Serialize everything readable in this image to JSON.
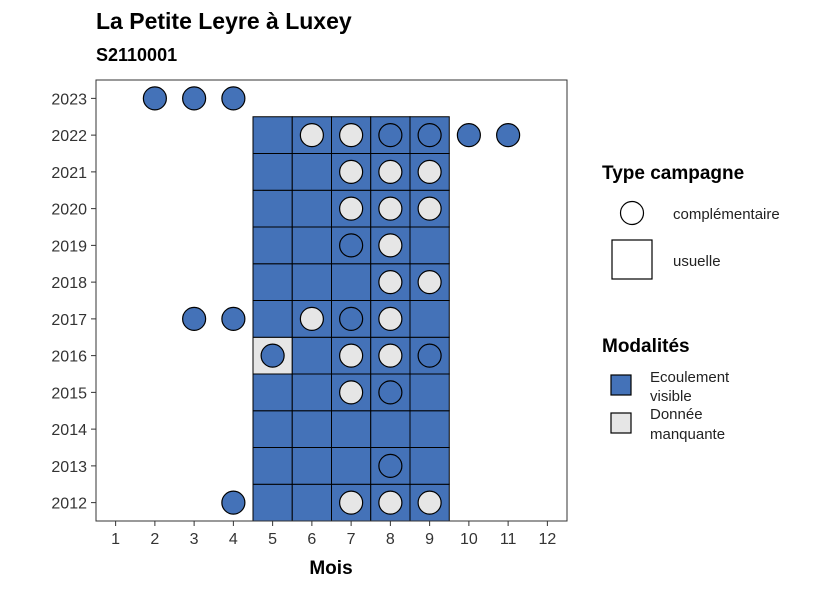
{
  "chart_data": {
    "type": "heatmap",
    "title": "La Petite Leyre à Luxey",
    "subtitle": "S2110001",
    "xlabel": "Mois",
    "ylabel": "",
    "x_ticks": [
      1,
      2,
      3,
      4,
      5,
      6,
      7,
      8,
      9,
      10,
      11,
      12
    ],
    "y_ticks": [
      2012,
      2013,
      2014,
      2015,
      2016,
      2017,
      2018,
      2019,
      2020,
      2021,
      2022,
      2023
    ],
    "xlim": [
      0.5,
      12.5
    ],
    "ylim": [
      2011.5,
      2023.5
    ],
    "colors": {
      "ecoulement_visible": "#4472B8",
      "donnee_manquante": "#E6E6E6"
    },
    "tiles_usuelle": [
      {
        "x": 5,
        "y": 2012,
        "m": "ecoulement_visible"
      },
      {
        "x": 6,
        "y": 2012,
        "m": "ecoulement_visible"
      },
      {
        "x": 7,
        "y": 2012,
        "m": "ecoulement_visible"
      },
      {
        "x": 8,
        "y": 2012,
        "m": "ecoulement_visible"
      },
      {
        "x": 9,
        "y": 2012,
        "m": "ecoulement_visible"
      },
      {
        "x": 5,
        "y": 2013,
        "m": "ecoulement_visible"
      },
      {
        "x": 6,
        "y": 2013,
        "m": "ecoulement_visible"
      },
      {
        "x": 7,
        "y": 2013,
        "m": "ecoulement_visible"
      },
      {
        "x": 8,
        "y": 2013,
        "m": "ecoulement_visible"
      },
      {
        "x": 9,
        "y": 2013,
        "m": "ecoulement_visible"
      },
      {
        "x": 5,
        "y": 2014,
        "m": "ecoulement_visible"
      },
      {
        "x": 6,
        "y": 2014,
        "m": "ecoulement_visible"
      },
      {
        "x": 7,
        "y": 2014,
        "m": "ecoulement_visible"
      },
      {
        "x": 8,
        "y": 2014,
        "m": "ecoulement_visible"
      },
      {
        "x": 9,
        "y": 2014,
        "m": "ecoulement_visible"
      },
      {
        "x": 5,
        "y": 2015,
        "m": "ecoulement_visible"
      },
      {
        "x": 6,
        "y": 2015,
        "m": "ecoulement_visible"
      },
      {
        "x": 7,
        "y": 2015,
        "m": "ecoulement_visible"
      },
      {
        "x": 8,
        "y": 2015,
        "m": "ecoulement_visible"
      },
      {
        "x": 9,
        "y": 2015,
        "m": "ecoulement_visible"
      },
      {
        "x": 5,
        "y": 2016,
        "m": "donnee_manquante"
      },
      {
        "x": 6,
        "y": 2016,
        "m": "ecoulement_visible"
      },
      {
        "x": 7,
        "y": 2016,
        "m": "ecoulement_visible"
      },
      {
        "x": 8,
        "y": 2016,
        "m": "ecoulement_visible"
      },
      {
        "x": 9,
        "y": 2016,
        "m": "ecoulement_visible"
      },
      {
        "x": 5,
        "y": 2017,
        "m": "ecoulement_visible"
      },
      {
        "x": 6,
        "y": 2017,
        "m": "ecoulement_visible"
      },
      {
        "x": 7,
        "y": 2017,
        "m": "ecoulement_visible"
      },
      {
        "x": 8,
        "y": 2017,
        "m": "ecoulement_visible"
      },
      {
        "x": 9,
        "y": 2017,
        "m": "ecoulement_visible"
      },
      {
        "x": 5,
        "y": 2018,
        "m": "ecoulement_visible"
      },
      {
        "x": 6,
        "y": 2018,
        "m": "ecoulement_visible"
      },
      {
        "x": 7,
        "y": 2018,
        "m": "ecoulement_visible"
      },
      {
        "x": 8,
        "y": 2018,
        "m": "ecoulement_visible"
      },
      {
        "x": 9,
        "y": 2018,
        "m": "ecoulement_visible"
      },
      {
        "x": 5,
        "y": 2019,
        "m": "ecoulement_visible"
      },
      {
        "x": 6,
        "y": 2019,
        "m": "ecoulement_visible"
      },
      {
        "x": 7,
        "y": 2019,
        "m": "ecoulement_visible"
      },
      {
        "x": 8,
        "y": 2019,
        "m": "ecoulement_visible"
      },
      {
        "x": 9,
        "y": 2019,
        "m": "ecoulement_visible"
      },
      {
        "x": 5,
        "y": 2020,
        "m": "ecoulement_visible"
      },
      {
        "x": 6,
        "y": 2020,
        "m": "ecoulement_visible"
      },
      {
        "x": 7,
        "y": 2020,
        "m": "ecoulement_visible"
      },
      {
        "x": 8,
        "y": 2020,
        "m": "ecoulement_visible"
      },
      {
        "x": 9,
        "y": 2020,
        "m": "ecoulement_visible"
      },
      {
        "x": 5,
        "y": 2021,
        "m": "ecoulement_visible"
      },
      {
        "x": 6,
        "y": 2021,
        "m": "ecoulement_visible"
      },
      {
        "x": 7,
        "y": 2021,
        "m": "ecoulement_visible"
      },
      {
        "x": 8,
        "y": 2021,
        "m": "ecoulement_visible"
      },
      {
        "x": 9,
        "y": 2021,
        "m": "ecoulement_visible"
      },
      {
        "x": 5,
        "y": 2022,
        "m": "ecoulement_visible"
      },
      {
        "x": 6,
        "y": 2022,
        "m": "ecoulement_visible"
      },
      {
        "x": 7,
        "y": 2022,
        "m": "ecoulement_visible"
      },
      {
        "x": 8,
        "y": 2022,
        "m": "ecoulement_visible"
      },
      {
        "x": 9,
        "y": 2022,
        "m": "ecoulement_visible"
      }
    ],
    "points_complementaire": [
      {
        "x": 2,
        "y": 2023,
        "m": "ecoulement_visible"
      },
      {
        "x": 3,
        "y": 2023,
        "m": "ecoulement_visible"
      },
      {
        "x": 4,
        "y": 2023,
        "m": "ecoulement_visible"
      },
      {
        "x": 6,
        "y": 2022,
        "m": "donnee_manquante"
      },
      {
        "x": 7,
        "y": 2022,
        "m": "donnee_manquante"
      },
      {
        "x": 8,
        "y": 2022,
        "m": "ecoulement_visible"
      },
      {
        "x": 9,
        "y": 2022,
        "m": "ecoulement_visible"
      },
      {
        "x": 10,
        "y": 2022,
        "m": "ecoulement_visible"
      },
      {
        "x": 11,
        "y": 2022,
        "m": "ecoulement_visible"
      },
      {
        "x": 7,
        "y": 2021,
        "m": "donnee_manquante"
      },
      {
        "x": 8,
        "y": 2021,
        "m": "donnee_manquante"
      },
      {
        "x": 9,
        "y": 2021,
        "m": "donnee_manquante"
      },
      {
        "x": 7,
        "y": 2020,
        "m": "donnee_manquante"
      },
      {
        "x": 8,
        "y": 2020,
        "m": "donnee_manquante"
      },
      {
        "x": 9,
        "y": 2020,
        "m": "donnee_manquante"
      },
      {
        "x": 7,
        "y": 2019,
        "m": "ecoulement_visible"
      },
      {
        "x": 8,
        "y": 2019,
        "m": "donnee_manquante"
      },
      {
        "x": 8,
        "y": 2018,
        "m": "donnee_manquante"
      },
      {
        "x": 9,
        "y": 2018,
        "m": "donnee_manquante"
      },
      {
        "x": 3,
        "y": 2017,
        "m": "ecoulement_visible"
      },
      {
        "x": 4,
        "y": 2017,
        "m": "ecoulement_visible"
      },
      {
        "x": 6,
        "y": 2017,
        "m": "donnee_manquante"
      },
      {
        "x": 7,
        "y": 2017,
        "m": "ecoulement_visible"
      },
      {
        "x": 8,
        "y": 2017,
        "m": "donnee_manquante"
      },
      {
        "x": 5,
        "y": 2016,
        "m": "ecoulement_visible"
      },
      {
        "x": 7,
        "y": 2016,
        "m": "donnee_manquante"
      },
      {
        "x": 8,
        "y": 2016,
        "m": "donnee_manquante"
      },
      {
        "x": 9,
        "y": 2016,
        "m": "ecoulement_visible"
      },
      {
        "x": 7,
        "y": 2015,
        "m": "donnee_manquante"
      },
      {
        "x": 8,
        "y": 2015,
        "m": "ecoulement_visible"
      },
      {
        "x": 8,
        "y": 2013,
        "m": "ecoulement_visible"
      },
      {
        "x": 4,
        "y": 2012,
        "m": "ecoulement_visible"
      },
      {
        "x": 7,
        "y": 2012,
        "m": "donnee_manquante"
      },
      {
        "x": 8,
        "y": 2012,
        "m": "donnee_manquante"
      },
      {
        "x": 9,
        "y": 2012,
        "m": "donnee_manquante"
      }
    ],
    "legend": {
      "placement": "right",
      "type_title": "Type campagne",
      "type_items": [
        "complémentaire",
        "usuelle"
      ],
      "mod_title": "Modalités",
      "mod_items": [
        {
          "key": "ecoulement_visible",
          "line1": "Ecoulement",
          "line2": "visible"
        },
        {
          "key": "donnee_manquante",
          "line1": "Donnée",
          "line2": "manquante"
        }
      ]
    }
  }
}
